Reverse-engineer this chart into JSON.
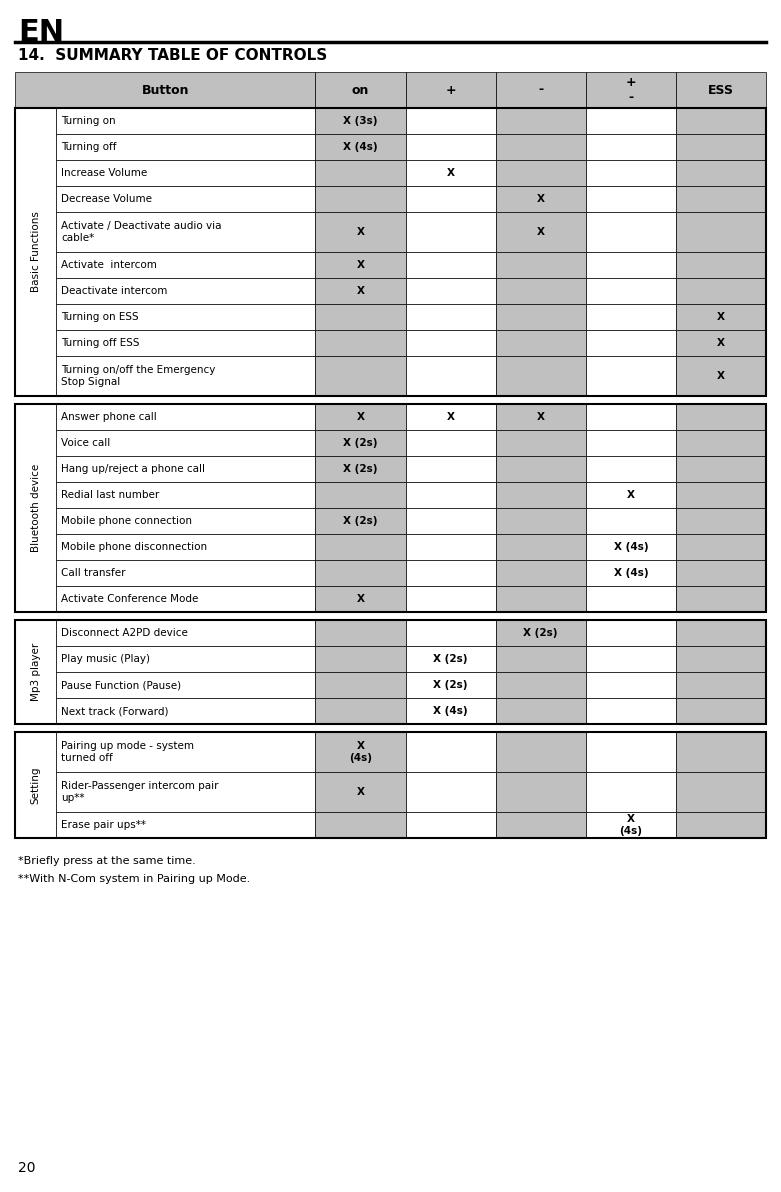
{
  "title_en": "EN",
  "title_section": "14.  SUMMARY TABLE OF CONTROLS",
  "footnotes": [
    "*Briefly press at the same time.",
    "**With N-Com system in Pairing up Mode."
  ],
  "page_number": "20",
  "gray_color": "#C0C0C0",
  "white_color": "#FFFFFF",
  "header_gray": "#C0C0C0",
  "groups": [
    {
      "group_label": "Basic Functions",
      "rows": [
        {
          "label": "Turning on",
          "on": "X (3s)",
          "plus": "",
          "minus": "",
          "pm": "",
          "ess": ""
        },
        {
          "label": "Turning off",
          "on": "X (4s)",
          "plus": "",
          "minus": "",
          "pm": "",
          "ess": ""
        },
        {
          "label": "Increase Volume",
          "on": "",
          "plus": "X",
          "minus": "",
          "pm": "",
          "ess": ""
        },
        {
          "label": "Decrease Volume",
          "on": "",
          "plus": "",
          "minus": "X",
          "pm": "",
          "ess": ""
        },
        {
          "label": "Activate / Deactivate audio via\ncable*",
          "on": "X",
          "plus": "",
          "minus": "X",
          "pm": "",
          "ess": ""
        },
        {
          "label": "Activate  intercom",
          "on": "X",
          "plus": "",
          "minus": "",
          "pm": "",
          "ess": ""
        },
        {
          "label": "Deactivate intercom",
          "on": "X",
          "plus": "",
          "minus": "",
          "pm": "",
          "ess": ""
        },
        {
          "label": "Turning on ESS",
          "on": "",
          "plus": "",
          "minus": "",
          "pm": "",
          "ess": "X"
        },
        {
          "label": "Turning off ESS",
          "on": "",
          "plus": "",
          "minus": "",
          "pm": "",
          "ess": "X"
        },
        {
          "label": "Turning on/off the Emergency\nStop Signal",
          "on": "",
          "plus": "",
          "minus": "",
          "pm": "",
          "ess": "X"
        }
      ]
    },
    {
      "group_label": "Bluetooth device",
      "rows": [
        {
          "label": "Answer phone call",
          "on": "X",
          "plus": "X",
          "minus": "X",
          "pm": "",
          "ess": ""
        },
        {
          "label": "Voice call",
          "on": "X (2s)",
          "plus": "",
          "minus": "",
          "pm": "",
          "ess": ""
        },
        {
          "label": "Hang up/reject a phone call",
          "on": "X (2s)",
          "plus": "",
          "minus": "",
          "pm": "",
          "ess": ""
        },
        {
          "label": "Redial last number",
          "on": "",
          "plus": "",
          "minus": "",
          "pm": "X",
          "ess": ""
        },
        {
          "label": "Mobile phone connection",
          "on": "X (2s)",
          "plus": "",
          "minus": "",
          "pm": "",
          "ess": ""
        },
        {
          "label": "Mobile phone disconnection",
          "on": "",
          "plus": "",
          "minus": "",
          "pm": "X (4s)",
          "ess": ""
        },
        {
          "label": "Call transfer",
          "on": "",
          "plus": "",
          "minus": "",
          "pm": "X (4s)",
          "ess": ""
        },
        {
          "label": "Activate Conference Mode",
          "on": "X",
          "plus": "",
          "minus": "",
          "pm": "",
          "ess": ""
        }
      ]
    },
    {
      "group_label": "Mp3 player",
      "rows": [
        {
          "label": "Disconnect A2PD device",
          "on": "",
          "plus": "",
          "minus": "X (2s)",
          "pm": "",
          "ess": ""
        },
        {
          "label": "Play music (Play)",
          "on": "",
          "plus": "X (2s)",
          "minus": "",
          "pm": "",
          "ess": ""
        },
        {
          "label": "Pause Function (Pause)",
          "on": "",
          "plus": "X (2s)",
          "minus": "",
          "pm": "",
          "ess": ""
        },
        {
          "label": "Next track (Forward)",
          "on": "",
          "plus": "X (4s)",
          "minus": "",
          "pm": "",
          "ess": ""
        }
      ]
    },
    {
      "group_label": "Setting",
      "rows": [
        {
          "label": "Pairing up mode - system\nturned off",
          "on": "X\n(4s)",
          "plus": "",
          "minus": "",
          "pm": "",
          "ess": ""
        },
        {
          "label": "Rider-Passenger intercom pair\nup**",
          "on": "X",
          "plus": "",
          "minus": "",
          "pm": "",
          "ess": ""
        },
        {
          "label": "Erase pair ups**",
          "on": "",
          "plus": "",
          "minus": "",
          "pm": "X\n(4s)",
          "ess": ""
        }
      ]
    }
  ]
}
